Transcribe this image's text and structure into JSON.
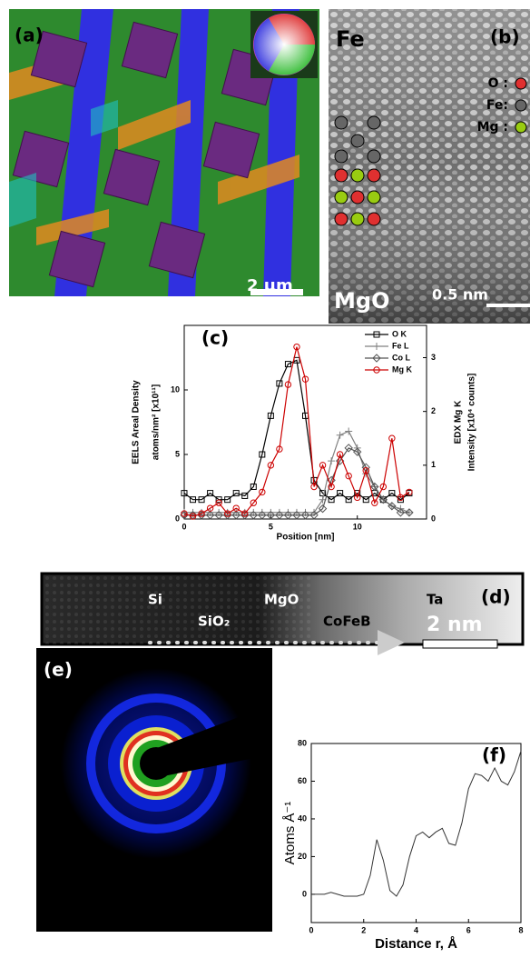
{
  "panels": {
    "a": {
      "label": "(a)",
      "scale": "2 μm"
    },
    "b": {
      "label": "(b)",
      "top": "Fe",
      "bottom": "MgO",
      "key": [
        "O :",
        "Fe:",
        "Mg :"
      ],
      "scale": "0.5 nm"
    },
    "d": {
      "label": "(d)",
      "layers": [
        "Si",
        "SiO₂",
        "MgO",
        "CoFeB",
        "Ta"
      ],
      "scale": "2 nm"
    },
    "e": {
      "label": "(e)"
    }
  },
  "chart_data": [
    {
      "type": "line",
      "panel_label": "(c)",
      "xlabel": "Position [nm]",
      "ylabel": [
        "EELS Areal Density",
        "atoms/nm² [x10¹¹]"
      ],
      "y2label": [
        "EDX Mg K",
        "Intensity [x10⁴ counts]"
      ],
      "x": [
        0,
        0.5,
        1,
        1.5,
        2,
        2.5,
        3,
        3.5,
        4,
        4.5,
        5,
        5.5,
        6,
        6.5,
        7,
        7.5,
        8,
        8.5,
        9,
        9.5,
        10,
        10.5,
        11,
        11.5,
        12,
        12.5,
        13
      ],
      "xlim": [
        0,
        14
      ],
      "xticks": [
        0,
        5,
        10
      ],
      "ylim": [
        0,
        15
      ],
      "yticks": [
        0,
        5,
        10
      ],
      "y2lim": [
        0,
        3.6
      ],
      "y2ticks": [
        0,
        1,
        2,
        3
      ],
      "legend": "top-right",
      "series": [
        {
          "name": "O K",
          "color": "#000000",
          "marker": "square",
          "values": [
            2,
            1.5,
            1.5,
            2,
            1.5,
            1.5,
            2,
            1.8,
            2.5,
            5,
            8,
            10.5,
            12,
            12.3,
            8,
            3,
            2,
            1.5,
            2,
            1.5,
            2,
            1.5,
            2,
            1.5,
            2,
            1.5,
            2
          ]
        },
        {
          "name": "Fe L",
          "color": "#808080",
          "marker": "plus",
          "values": [
            0.5,
            0.5,
            0.5,
            0.5,
            0.5,
            0.5,
            0.5,
            0.5,
            0.5,
            0.5,
            0.5,
            0.5,
            0.5,
            0.5,
            0.5,
            0.5,
            1.5,
            4.5,
            6.5,
            6.8,
            5.5,
            3.5,
            2.5,
            1.5,
            1,
            0.8,
            0.5
          ]
        },
        {
          "name": "Co L",
          "color": "#555555",
          "marker": "diamond",
          "values": [
            0.3,
            0.3,
            0.3,
            0.3,
            0.3,
            0.3,
            0.3,
            0.3,
            0.3,
            0.3,
            0.3,
            0.3,
            0.3,
            0.3,
            0.3,
            0.3,
            0.8,
            3,
            4.5,
            5.5,
            5.2,
            4,
            2.5,
            1.5,
            1,
            0.5,
            0.5
          ]
        },
        {
          "name": "Mg K",
          "color": "#cc0000",
          "marker": "circle",
          "axis": "y2",
          "values": [
            0.1,
            0.05,
            0.1,
            0.2,
            0.3,
            0.1,
            0.2,
            0.1,
            0.3,
            0.5,
            1,
            1.3,
            2.5,
            3.2,
            2.6,
            0.6,
            1,
            0.6,
            1.2,
            0.8,
            0.4,
            0.9,
            0.3,
            0.6,
            1.5,
            0.4,
            0.5
          ]
        }
      ]
    },
    {
      "type": "line",
      "panel_label": "(f)",
      "xlabel": "Distance r, Å",
      "ylabel": "Atoms Å⁻¹",
      "x": [
        0,
        0.25,
        0.5,
        0.75,
        1,
        1.25,
        1.5,
        1.75,
        2,
        2.25,
        2.5,
        2.75,
        3,
        3.25,
        3.5,
        3.75,
        4,
        4.25,
        4.5,
        4.75,
        5,
        5.25,
        5.5,
        5.75,
        6,
        6.25,
        6.5,
        6.75,
        7,
        7.25,
        7.5,
        7.75,
        8
      ],
      "xlim": [
        0,
        8
      ],
      "xticks": [
        0,
        2,
        4,
        6,
        8
      ],
      "ylim": [
        -15,
        80
      ],
      "yticks": [
        0,
        20,
        40,
        60,
        80
      ],
      "series": [
        {
          "color": "#333333",
          "values": [
            0,
            0,
            0,
            1,
            0,
            -1,
            -1,
            -1,
            0,
            10,
            29,
            18,
            2,
            -1,
            5,
            20,
            31,
            33,
            30,
            33,
            35,
            27,
            26,
            38,
            56,
            64,
            63,
            60,
            67,
            60,
            58,
            65,
            76
          ]
        }
      ]
    }
  ]
}
